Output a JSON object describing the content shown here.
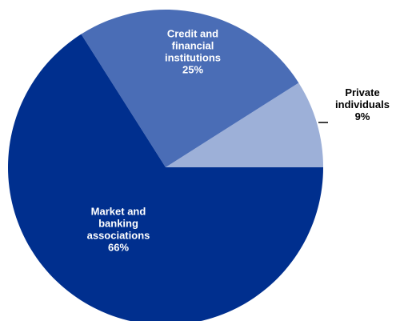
{
  "chart_data": {
    "type": "pie",
    "title": "",
    "slices": [
      {
        "label_lines": [
          "Private",
          "individuals"
        ],
        "value": 9,
        "value_label": "9%",
        "color": "#9db0d8"
      },
      {
        "label_lines": [
          "Credit and",
          "financial",
          "institutions"
        ],
        "value": 25,
        "value_label": "25%",
        "color": "#4a6db6"
      },
      {
        "label_lines": [
          "Market and",
          "banking",
          "associations"
        ],
        "value": 66,
        "value_label": "66%",
        "color": "#002f8e"
      }
    ],
    "label_colors": {
      "inside": "#ffffff",
      "outside": "#000000"
    }
  }
}
